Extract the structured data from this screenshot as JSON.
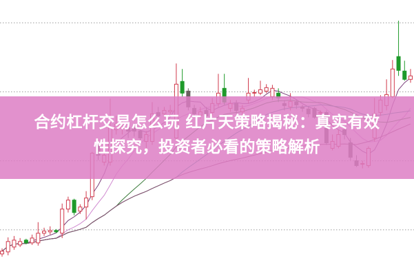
{
  "headline": {
    "line1": "合约杠杆交易怎么玩 红片天策略揭秘：真实有效",
    "line2": "性探究，投资者必看的策略解析"
  },
  "colors": {
    "banner": "#dd7ec4",
    "up": "#d0384a",
    "down": "#6b6161",
    "green": "#1e9a2a",
    "grid": "#999999",
    "ma": [
      "#7a3f7a",
      "#d08ad0",
      "#3a7a3a",
      "#2f8f8f",
      "#8a4a6a"
    ]
  },
  "chart_data": {
    "type": "candlestick",
    "grid": true,
    "ylim": [
      0,
      400
    ],
    "gridlines": [
      67,
      167,
      267,
      367
    ],
    "candles": [
      {
        "o": 32,
        "c": 36,
        "h": 40,
        "l": 28,
        "k": "up"
      },
      {
        "o": 35,
        "c": 50,
        "h": 56,
        "l": 30,
        "k": "up"
      },
      {
        "o": 42,
        "c": 52,
        "h": 58,
        "l": 38,
        "k": "up"
      },
      {
        "o": 45,
        "c": 50,
        "h": 55,
        "l": 42,
        "k": "up"
      },
      {
        "o": 52,
        "c": 48,
        "h": 54,
        "l": 46,
        "k": "green"
      },
      {
        "o": 48,
        "c": 55,
        "h": 60,
        "l": 45,
        "k": "up"
      },
      {
        "o": 48,
        "c": 62,
        "h": 78,
        "l": 44,
        "k": "up"
      },
      {
        "o": 62,
        "c": 65,
        "h": 70,
        "l": 58,
        "k": "up"
      },
      {
        "o": 64,
        "c": 66,
        "h": 72,
        "l": 60,
        "k": "up"
      },
      {
        "o": 66,
        "c": 64,
        "h": 68,
        "l": 62,
        "k": "green"
      },
      {
        "o": 62,
        "c": 97,
        "h": 105,
        "l": 55,
        "k": "up"
      },
      {
        "o": 97,
        "c": 110,
        "h": 115,
        "l": 92,
        "k": "up"
      },
      {
        "o": 110,
        "c": 92,
        "h": 112,
        "l": 88,
        "k": "green"
      },
      {
        "o": 94,
        "c": 100,
        "h": 104,
        "l": 90,
        "k": "up"
      },
      {
        "o": 100,
        "c": 113,
        "h": 123,
        "l": 82,
        "k": "up"
      },
      {
        "o": 115,
        "c": 178,
        "h": 180,
        "l": 110,
        "k": "up"
      },
      {
        "o": 190,
        "c": 175,
        "h": 195,
        "l": 168,
        "k": "down"
      },
      {
        "o": 165,
        "c": 175,
        "h": 180,
        "l": 160,
        "k": "up"
      },
      {
        "o": 165,
        "c": 215,
        "h": 257,
        "l": 160,
        "k": "up"
      },
      {
        "o": 212,
        "c": 220,
        "h": 232,
        "l": 205,
        "k": "up"
      },
      {
        "o": 214,
        "c": 217,
        "h": 225,
        "l": 205,
        "k": "up"
      },
      {
        "o": 215,
        "c": 210,
        "h": 222,
        "l": 200,
        "k": "down"
      },
      {
        "o": 215,
        "c": 210,
        "h": 220,
        "l": 202,
        "k": "down"
      },
      {
        "o": 210,
        "c": 200,
        "h": 212,
        "l": 192,
        "k": "down"
      },
      {
        "o": 195,
        "c": 205,
        "h": 210,
        "l": 185,
        "k": "up"
      },
      {
        "o": 195,
        "c": 235,
        "h": 252,
        "l": 190,
        "k": "up"
      },
      {
        "o": 237,
        "c": 232,
        "h": 245,
        "l": 225,
        "k": "down"
      },
      {
        "o": 235,
        "c": 240,
        "h": 245,
        "l": 230,
        "k": "up"
      },
      {
        "o": 238,
        "c": 240,
        "h": 248,
        "l": 232,
        "k": "up"
      },
      {
        "o": 200,
        "c": 278,
        "h": 308,
        "l": 195,
        "k": "up"
      },
      {
        "o": 282,
        "c": 265,
        "h": 300,
        "l": 260,
        "k": "green"
      },
      {
        "o": 268,
        "c": 245,
        "h": 272,
        "l": 240,
        "k": "down"
      },
      {
        "o": 243,
        "c": 235,
        "h": 248,
        "l": 230,
        "k": "down"
      },
      {
        "o": 233,
        "c": 238,
        "h": 245,
        "l": 228,
        "k": "up"
      },
      {
        "o": 240,
        "c": 232,
        "h": 245,
        "l": 228,
        "k": "down"
      },
      {
        "o": 237,
        "c": 250,
        "h": 258,
        "l": 232,
        "k": "up"
      },
      {
        "o": 250,
        "c": 265,
        "h": 293,
        "l": 245,
        "k": "up"
      },
      {
        "o": 272,
        "c": 252,
        "h": 293,
        "l": 248,
        "k": "green"
      },
      {
        "o": 243,
        "c": 250,
        "h": 255,
        "l": 238,
        "k": "up"
      },
      {
        "o": 250,
        "c": 240,
        "h": 255,
        "l": 235,
        "k": "down"
      },
      {
        "o": 238,
        "c": 243,
        "h": 248,
        "l": 232,
        "k": "up"
      },
      {
        "o": 255,
        "c": 265,
        "h": 287,
        "l": 250,
        "k": "up"
      },
      {
        "o": 265,
        "c": 266,
        "h": 270,
        "l": 260,
        "k": "up"
      },
      {
        "o": 265,
        "c": 270,
        "h": 283,
        "l": 262,
        "k": "up"
      },
      {
        "o": 268,
        "c": 273,
        "h": 278,
        "l": 265,
        "k": "up"
      },
      {
        "o": 260,
        "c": 272,
        "h": 277,
        "l": 255,
        "k": "up"
      },
      {
        "o": 265,
        "c": 258,
        "h": 272,
        "l": 252,
        "k": "green"
      },
      {
        "o": 250,
        "c": 247,
        "h": 255,
        "l": 240,
        "k": "down"
      },
      {
        "o": 245,
        "c": 253,
        "h": 265,
        "l": 240,
        "k": "up"
      },
      {
        "o": 252,
        "c": 248,
        "h": 255,
        "l": 242,
        "k": "down"
      },
      {
        "o": 245,
        "c": 243,
        "h": 248,
        "l": 238,
        "k": "down"
      },
      {
        "o": 242,
        "c": 235,
        "h": 245,
        "l": 230,
        "k": "down"
      },
      {
        "o": 243,
        "c": 230,
        "h": 245,
        "l": 228,
        "k": "down"
      },
      {
        "o": 236,
        "c": 237,
        "h": 240,
        "l": 233,
        "k": "up"
      },
      {
        "o": 237,
        "c": 193,
        "h": 240,
        "l": 190,
        "k": "down"
      },
      {
        "o": 185,
        "c": 195,
        "h": 205,
        "l": 182,
        "k": "up"
      },
      {
        "o": 188,
        "c": 205,
        "h": 212,
        "l": 185,
        "k": "up"
      },
      {
        "o": 212,
        "c": 205,
        "h": 215,
        "l": 198,
        "k": "down"
      },
      {
        "o": 193,
        "c": 172,
        "h": 200,
        "l": 168,
        "k": "down"
      },
      {
        "o": 167,
        "c": 160,
        "h": 175,
        "l": 158,
        "k": "down"
      },
      {
        "o": 163,
        "c": 162,
        "h": 167,
        "l": 156,
        "k": "up"
      },
      {
        "o": 160,
        "c": 185,
        "h": 188,
        "l": 157,
        "k": "up"
      },
      {
        "o": 200,
        "c": 235,
        "h": 258,
        "l": 195,
        "k": "up"
      },
      {
        "o": 237,
        "c": 255,
        "h": 262,
        "l": 232,
        "k": "up"
      },
      {
        "o": 247,
        "c": 263,
        "h": 285,
        "l": 240,
        "k": "up"
      },
      {
        "o": 260,
        "c": 300,
        "h": 313,
        "l": 258,
        "k": "up"
      },
      {
        "o": 318,
        "c": 298,
        "h": 370,
        "l": 290,
        "k": "green"
      },
      {
        "o": 297,
        "c": 285,
        "h": 312,
        "l": 283,
        "k": "green"
      },
      {
        "o": 285,
        "c": 290,
        "h": 300,
        "l": 280,
        "k": "up"
      }
    ],
    "moving_average_periods": [
      5,
      10,
      20,
      30,
      60
    ]
  }
}
